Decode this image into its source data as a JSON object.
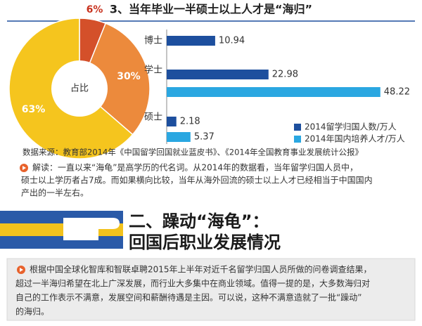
{
  "title": "3、当年毕业一半硕士以上人才是“海归”",
  "chart_data": [
    {
      "type": "pie",
      "center_label": "占比",
      "values": [
        6,
        30,
        63
      ],
      "value_labels": [
        "6%",
        "30%",
        "63%"
      ],
      "colors": [
        "#d4502a",
        "#ec8a3c",
        "#f5c51e"
      ]
    },
    {
      "type": "bar",
      "orientation": "horizontal",
      "categories": [
        "博士",
        "学士",
        "硕士"
      ],
      "series": [
        {
          "name": "2014留学归国人数/万人",
          "color": "#1d4f9e",
          "values": [
            10.94,
            22.98,
            2.18
          ]
        },
        {
          "name": "2014年国内培养人才/万人",
          "color": "#2aa7e1",
          "values": [
            null,
            48.22,
            5.37
          ]
        }
      ],
      "xlim": [
        0,
        50
      ],
      "legend": "bottom-right"
    }
  ],
  "source": "数据来源：教育部2014年《中国留学回国就业蓝皮书》、《2014年全国教育事业发展统计公报》",
  "note": [
    "解读：一直以来“海龟”是高学历的代名词。从2014年的数据看，当年留学归国人员中，",
    "硕士以上学历者占7成。而如果横向比较，当年从海外回流的硕士以上人才已经相当于中国国内",
    "产出的一半左右。"
  ],
  "section_title": [
    "二、躁动“海龟”：",
    "回国后职业发展情况"
  ],
  "paragraph": [
    "根据中国全球化智库和智联卓聘2015年上半年对近千名留学归国人员所做的问卷调查结果，",
    "超过一半海归希望在北上广深发展，而行业大多集中在商业领域。值得一提的是，大多数海归对",
    "自己的工作表示不满意，发展空间和薪酬待遇是主因。可以说，这种不满意造就了一批“躁动”",
    "的海归。"
  ]
}
